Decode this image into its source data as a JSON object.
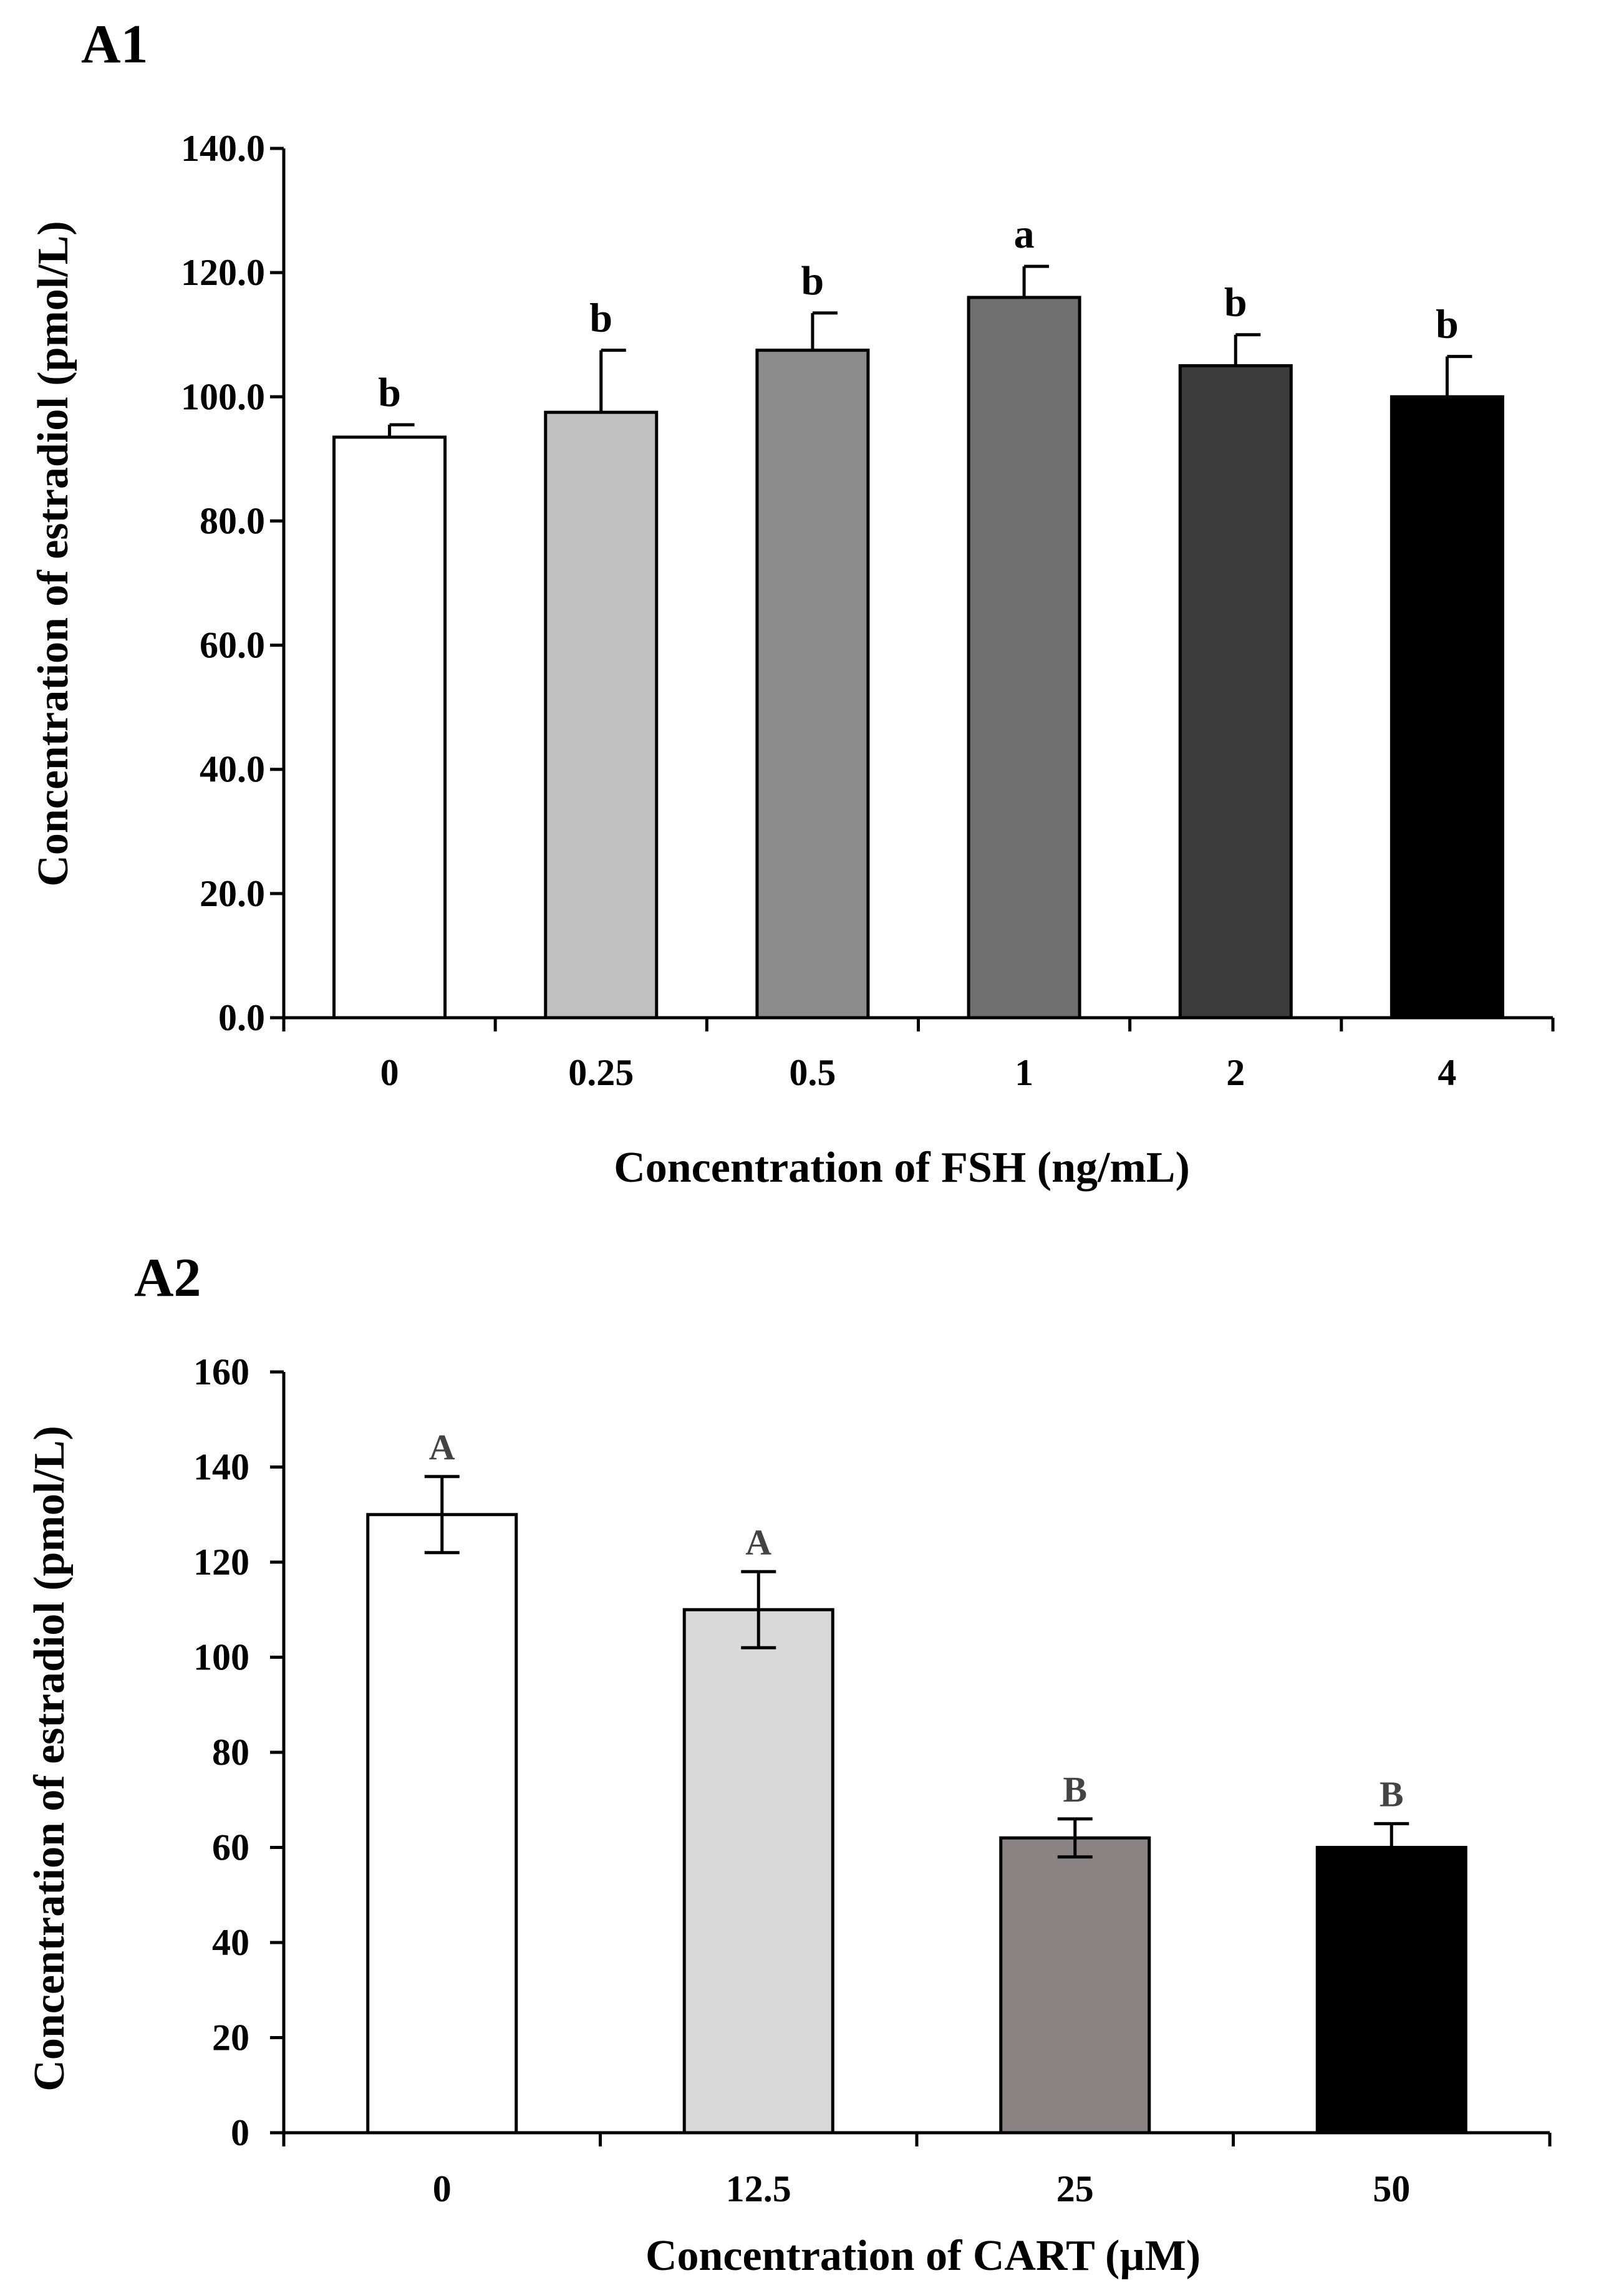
{
  "chart_data": [
    {
      "type": "bar",
      "panel_label": "A1",
      "categories": [
        "0",
        "0.25",
        "0.5",
        "1",
        "2",
        "4"
      ],
      "values": [
        93.5,
        97.5,
        107.5,
        116.0,
        105.0,
        100.0
      ],
      "errors": [
        2.0,
        10.0,
        6.0,
        5.0,
        5.0,
        6.5
      ],
      "significance": [
        "b",
        "b",
        "b",
        "a",
        "b",
        "b"
      ],
      "colors": [
        "#ffffff",
        "#c0c0c0",
        "#8c8c8c",
        "#707070",
        "#3c3c3c",
        "#000000"
      ],
      "yticks": [
        "0.0",
        "20.0",
        "40.0",
        "60.0",
        "80.0",
        "100.0",
        "120.0",
        "140.0"
      ],
      "ylim": [
        0,
        140
      ],
      "xlabel": "Concentration of  FSH  (ng/mL)",
      "ylabel": "Concentration of estradiol (pmol/L)"
    },
    {
      "type": "bar",
      "panel_label": "A2",
      "categories": [
        "0",
        "12.5",
        "25",
        "50"
      ],
      "values": [
        130,
        110,
        62,
        60
      ],
      "errors": [
        8,
        8,
        4,
        5
      ],
      "significance": [
        "A",
        "A",
        "B",
        "B"
      ],
      "colors": [
        "#ffffff",
        "#d9d9d9",
        "#8c8484",
        "#000000"
      ],
      "yticks": [
        "0",
        "20",
        "40",
        "60",
        "80",
        "100",
        "120",
        "140",
        "160"
      ],
      "ylim": [
        0,
        160
      ],
      "xlabel": "Concentration of CART (µM)",
      "ylabel": "Concentration of estradiol (pmol/L)"
    }
  ]
}
